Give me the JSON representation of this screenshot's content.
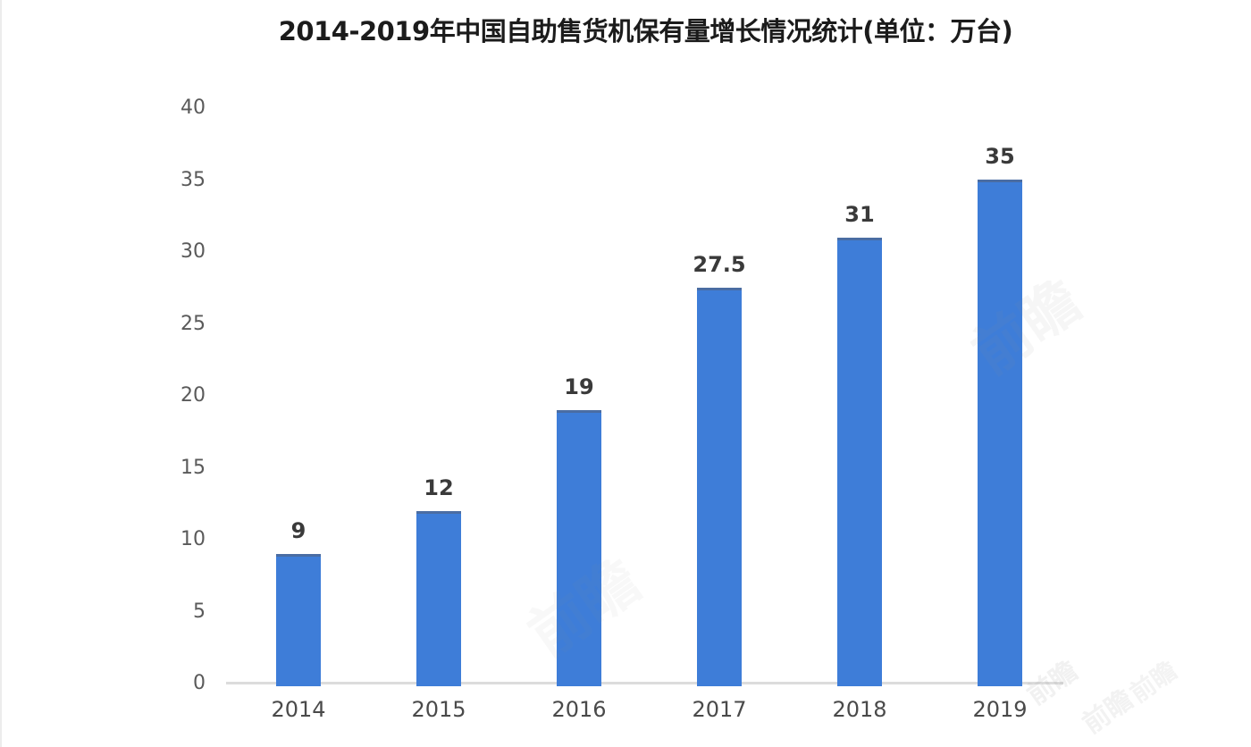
{
  "chart_data": {
    "type": "bar",
    "title": "2014-2019年中国自助售货机保有量增长情况统计(单位：万台)",
    "categories": [
      "2014",
      "2015",
      "2016",
      "2017",
      "2018",
      "2019"
    ],
    "values": [
      9,
      12,
      19,
      27.5,
      31,
      35
    ],
    "data_labels": [
      "9",
      "12",
      "19",
      "27.5",
      "31",
      "35"
    ],
    "xlabel": "",
    "ylabel": "",
    "ylim": [
      0,
      40
    ],
    "ytick_step": 5,
    "yticks": [
      0,
      5,
      10,
      15,
      20,
      25,
      30,
      35,
      40
    ],
    "grid": false,
    "legend": "none",
    "bar_color": "#3e7dd8",
    "bar_top_edge_color": "#4a6da3",
    "axis_line_color": "#dcdcdc",
    "y_tick_label_color": "#5a5a5a",
    "x_tick_label_color": "#4a4a4a",
    "data_label_color": "#3a3a3a",
    "title_color": "#1b1b1b",
    "background_color": "#ffffff"
  },
  "watermark": {
    "text": "前瞻",
    "color": "#8f8f8f"
  },
  "page": {
    "right_edge_line_color": "#ececec"
  }
}
